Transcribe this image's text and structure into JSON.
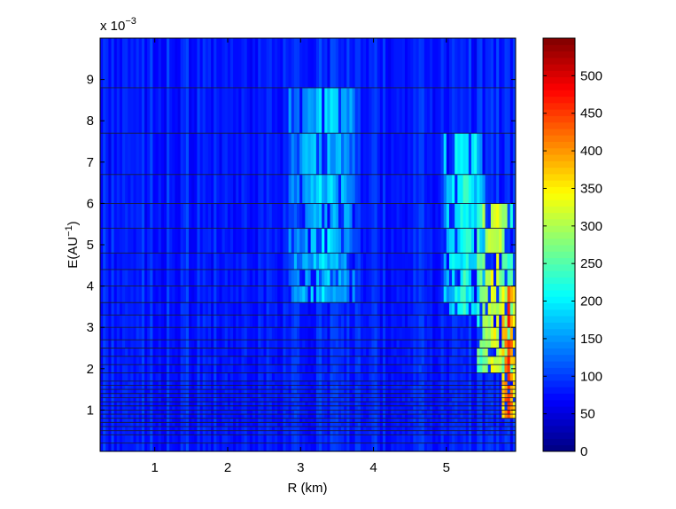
{
  "chart_data": {
    "type": "heatmap",
    "title": "",
    "xlabel": "R (km)",
    "ylabel": "E(AU",
    "ylabel_superscript": "−1",
    "ylabel_close": ")",
    "y_exponent_base": "x 10",
    "y_exponent_power": "−3",
    "xlim": [
      0.25,
      5.95
    ],
    "ylim": [
      0,
      0.01
    ],
    "x_ticks": [
      1,
      2,
      3,
      4,
      5
    ],
    "x_tick_labels": [
      "1",
      "2",
      "3",
      "4",
      "5"
    ],
    "y_ticks": [
      0.001,
      0.002,
      0.003,
      0.004,
      0.005,
      0.006,
      0.007,
      0.008,
      0.009
    ],
    "y_tick_labels": [
      "1",
      "2",
      "3",
      "4",
      "5",
      "6",
      "7",
      "8",
      "9"
    ],
    "y_bin_edges": [
      0.0002,
      0.0004,
      0.0005,
      0.0006,
      0.0007,
      0.0008,
      0.0009,
      0.001,
      0.0011,
      0.0012,
      0.0013,
      0.0014,
      0.0015,
      0.0016,
      0.0017,
      0.0019,
      0.0021,
      0.0023,
      0.0025,
      0.0027,
      0.003,
      0.0033,
      0.0036,
      0.004,
      0.0044,
      0.0048,
      0.0054,
      0.006,
      0.0067,
      0.0077,
      0.0088,
      0.01
    ],
    "hot_regions": [
      {
        "x_center": 3.3,
        "x_width": 0.9,
        "y_range": [
          0.0036,
          0.0088
        ],
        "value": 185
      },
      {
        "x_center": 5.25,
        "x_width": 0.6,
        "y_range": [
          0.0033,
          0.0078
        ],
        "value": 220
      },
      {
        "x_center": 5.65,
        "x_width": 0.5,
        "y_range": [
          0.002,
          0.006
        ],
        "value": 330
      },
      {
        "x_center": 5.85,
        "x_width": 0.2,
        "y_range": [
          0.0008,
          0.004
        ],
        "value": 460
      }
    ],
    "background_value": 85,
    "colorbar": {
      "min": 0,
      "max": 550,
      "ticks": [
        0,
        50,
        100,
        150,
        200,
        250,
        300,
        350,
        400,
        450,
        500
      ],
      "tick_labels": [
        "0",
        "50",
        "100",
        "150",
        "200",
        "250",
        "300",
        "350",
        "400",
        "450",
        "500"
      ],
      "colormap": "jet"
    },
    "grid": false,
    "legend": "none"
  }
}
